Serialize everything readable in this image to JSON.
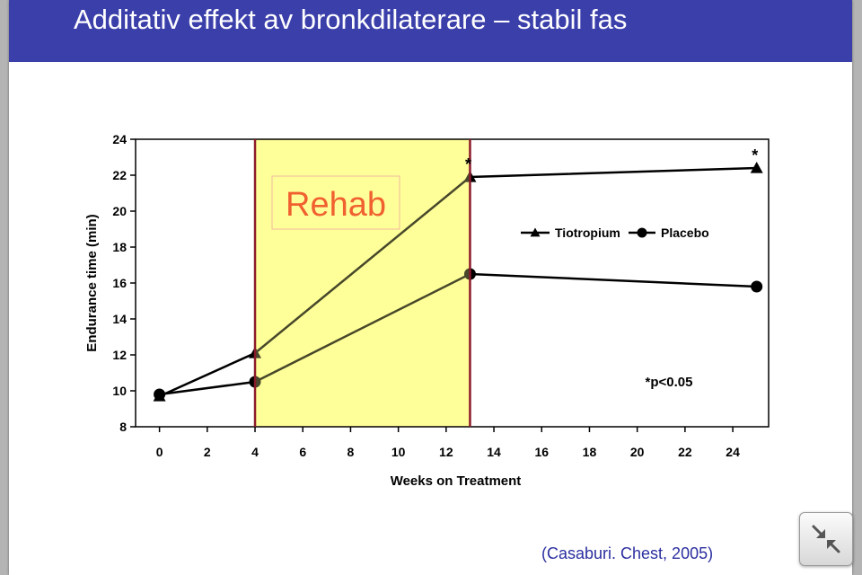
{
  "slide": {
    "title": "Additativ effekt av bronkdilaterare – stabil fas",
    "citation": "(Casaburi. Chest, 2005)"
  },
  "controls": {
    "collapse_icon": "collapse-arrows-icon"
  },
  "colors": {
    "title_bar": "#3b3faa",
    "rehab_fill": "#ffff99",
    "rehab_border": "#8b1a2a",
    "rehab_label": "#f06030",
    "series_line": "#000000",
    "citation": "#2b2fa0"
  },
  "chart_data": {
    "type": "line",
    "xlabel": "Weeks on Treatment",
    "ylabel": "Endurance time (min)",
    "xlim": [
      -1,
      25.5
    ],
    "ylim": [
      8,
      24
    ],
    "x_ticks": [
      0,
      2,
      4,
      6,
      8,
      10,
      12,
      14,
      16,
      18,
      20,
      22,
      24
    ],
    "y_ticks": [
      8,
      10,
      12,
      14,
      16,
      18,
      20,
      22,
      24
    ],
    "grid": false,
    "legend_position": "right",
    "series": [
      {
        "name": "Tiotropium",
        "marker": "triangle",
        "x": [
          0,
          4,
          13,
          25
        ],
        "y": [
          9.7,
          12.1,
          21.9,
          22.4
        ]
      },
      {
        "name": "Placebo",
        "marker": "circle",
        "x": [
          0,
          4,
          13,
          25
        ],
        "y": [
          9.8,
          10.5,
          16.5,
          15.8
        ]
      }
    ],
    "significance": {
      "markers": [
        "*",
        "*"
      ],
      "at_x": [
        13,
        25
      ],
      "note": "*p<0.05"
    },
    "shaded_region": {
      "label": "Rehab",
      "x_start": 4,
      "x_end": 13
    }
  }
}
